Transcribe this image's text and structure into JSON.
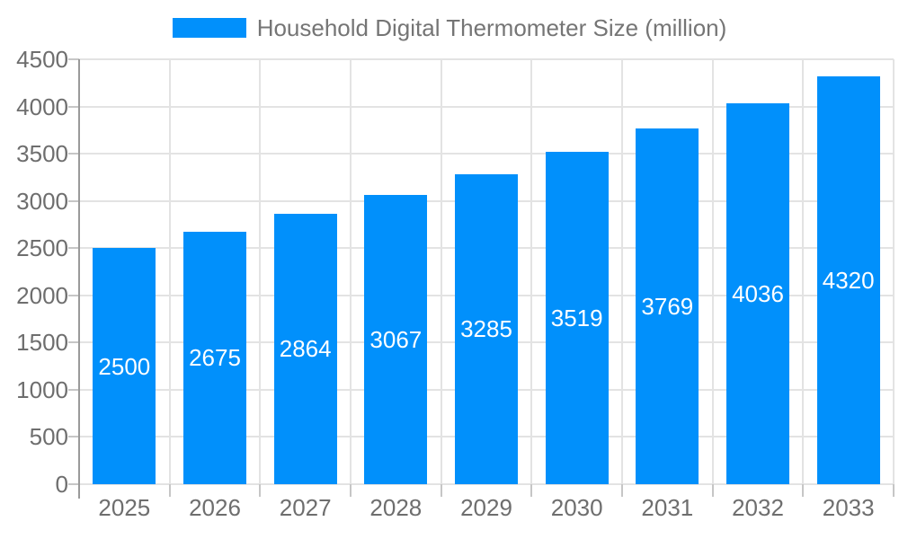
{
  "legend": {
    "label": "Household Digital Thermometer Size (million)"
  },
  "chart_data": {
    "type": "bar",
    "title": "Household Digital Thermometer Size (million)",
    "categories": [
      "2025",
      "2026",
      "2027",
      "2028",
      "2029",
      "2030",
      "2031",
      "2032",
      "2033"
    ],
    "values": [
      2500,
      2675,
      2864,
      3067,
      3285,
      3519,
      3769,
      4036,
      4320
    ],
    "xlabel": "",
    "ylabel": "",
    "ylim": [
      0,
      4500
    ],
    "yticks": [
      0,
      500,
      1000,
      1500,
      2000,
      2500,
      3000,
      3500,
      4000,
      4500
    ],
    "grid": true,
    "legend_position": "top",
    "value_labels": "inside-center",
    "colors": {
      "bar": "#0190FB",
      "bar_value_label": "#FFFFFF",
      "axis_label": "#6E6E6E",
      "legend_text": "#757575",
      "grid_line": "#E3E3E3",
      "tick_line": "#C6C6C6",
      "axis_line": "#9A9A9A",
      "background": "#FFFFFF"
    }
  }
}
